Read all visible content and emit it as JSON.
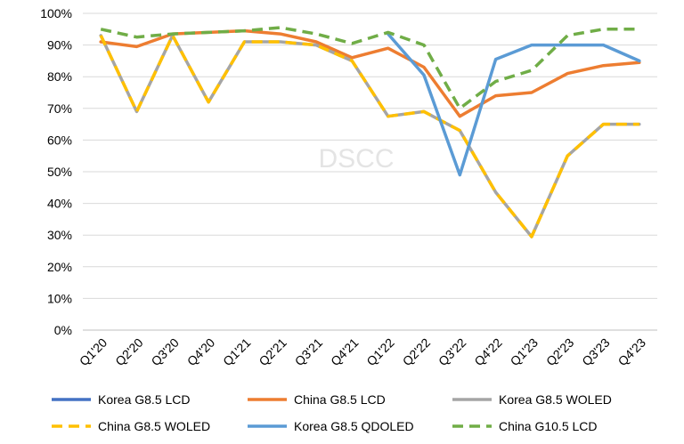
{
  "watermark": "DSCC",
  "chart_data": {
    "type": "line",
    "categories": [
      "Q1'20",
      "Q2'20",
      "Q3'20",
      "Q4'20",
      "Q1'21",
      "Q2'21",
      "Q3'21",
      "Q4'21",
      "Q1'22",
      "Q2'22",
      "Q3'22",
      "Q4'22",
      "Q1'23",
      "Q2'23",
      "Q3'23",
      "Q4'23"
    ],
    "ylim": [
      0,
      100
    ],
    "yticks": [
      0,
      10,
      20,
      30,
      40,
      50,
      60,
      70,
      80,
      90,
      100
    ],
    "ytick_labels": [
      "0%",
      "10%",
      "20%",
      "30%",
      "40%",
      "50%",
      "60%",
      "70%",
      "80%",
      "90%",
      "100%"
    ],
    "grid": "horizontal",
    "legend_position": "bottom",
    "series": [
      {
        "name": "Korea G8.5 LCD",
        "color": "#4472C4",
        "dash": "solid",
        "values": [
          null,
          null,
          null,
          null,
          null,
          null,
          null,
          null,
          null,
          null,
          null,
          null,
          null,
          null,
          null,
          null
        ]
      },
      {
        "name": "China G8.5 LCD",
        "color": "#ED7D31",
        "dash": "solid",
        "values": [
          91,
          89.5,
          93.5,
          94,
          94.5,
          93.5,
          91,
          86,
          89,
          83,
          67.5,
          74,
          75,
          81,
          83.5,
          84.5
        ]
      },
      {
        "name": "Korea G8.5 WOLED",
        "color": "#A5A5A5",
        "dash": "solid",
        "values": [
          93,
          69,
          93,
          72,
          91,
          91,
          90,
          85,
          67.5,
          69,
          63,
          43.5,
          29.5,
          55,
          65,
          65
        ]
      },
      {
        "name": "China G8.5 WOLED",
        "color": "#FFC000",
        "dash": "dashed",
        "values": [
          93,
          69,
          93,
          72,
          91,
          91,
          90,
          85,
          67.5,
          69,
          63,
          43.5,
          29.5,
          55,
          65,
          65
        ]
      },
      {
        "name": "Korea G8.5 QDOLED",
        "color": "#5B9BD5",
        "dash": "solid",
        "values": [
          null,
          null,
          null,
          null,
          null,
          null,
          null,
          null,
          93.5,
          80.5,
          49,
          85.5,
          90,
          90,
          90,
          85
        ]
      },
      {
        "name": "China G10.5 LCD",
        "color": "#70AD47",
        "dash": "dashed",
        "values": [
          95,
          92.5,
          93.5,
          94,
          94.5,
          95.5,
          93.5,
          90.5,
          94,
          90,
          70,
          78.5,
          82,
          93,
          95,
          95
        ]
      }
    ]
  }
}
